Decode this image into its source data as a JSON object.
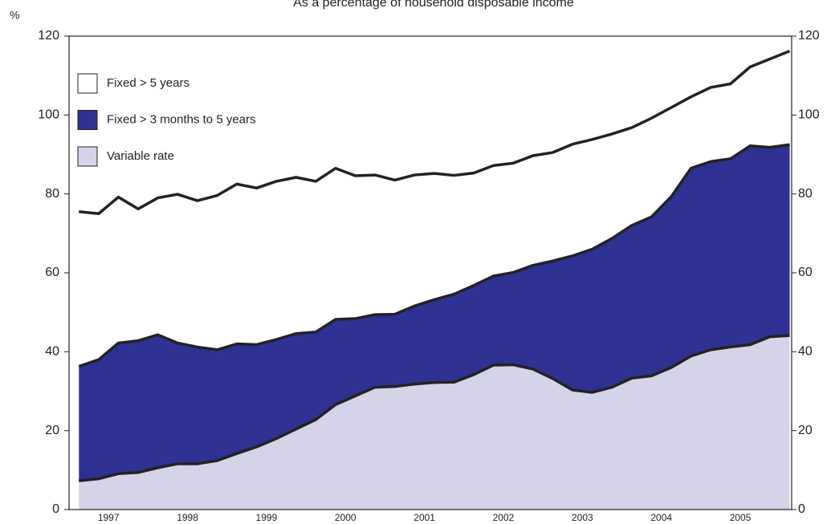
{
  "chart_data": {
    "type": "stacked-area",
    "title": "As a percentage of household disposable income",
    "y_label": "%",
    "x": [
      1997.125,
      1997.375,
      1997.625,
      1997.875,
      1998.125,
      1998.375,
      1998.625,
      1998.875,
      1999.125,
      1999.375,
      1999.625,
      1999.875,
      2000.125,
      2000.375,
      2000.625,
      2000.875,
      2001.125,
      2001.375,
      2001.625,
      2001.875,
      2002.125,
      2002.375,
      2002.625,
      2002.875,
      2003.125,
      2003.375,
      2003.625,
      2003.875,
      2004.125,
      2004.375,
      2004.625,
      2004.875,
      2005.125,
      2005.375,
      2005.625,
      2005.875,
      2006.125
    ],
    "xlim": [
      1997,
      2006.15
    ],
    "xticks": [
      {
        "value": 1997.5,
        "label": "1997"
      },
      {
        "value": 1998.5,
        "label": "1998"
      },
      {
        "value": 1999.5,
        "label": "1999"
      },
      {
        "value": 2000.5,
        "label": "2000"
      },
      {
        "value": 2001.5,
        "label": "2001"
      },
      {
        "value": 2002.5,
        "label": "2002"
      },
      {
        "value": 2003.5,
        "label": "2003"
      },
      {
        "value": 2004.5,
        "label": "2004"
      },
      {
        "value": 2005.5,
        "label": "2005"
      }
    ],
    "ylim": [
      0,
      120
    ],
    "yticks": [
      0,
      20,
      40,
      60,
      80,
      100,
      120
    ],
    "y2lim": [
      0,
      120
    ],
    "y2ticks": [
      0,
      20,
      40,
      60,
      80,
      100,
      120
    ],
    "legend": "upper left",
    "series": [
      {
        "name": "Variable rate",
        "color": "#d4d3e8",
        "values": [
          7.3,
          7.8,
          9.1,
          9.4,
          10.6,
          11.6,
          11.6,
          12.4,
          14.2,
          15.9,
          18,
          20.4,
          22.8,
          26.6,
          28.8,
          31,
          31.2,
          31.8,
          32.2,
          32.3,
          34.2,
          36.6,
          36.7,
          35.6,
          33.2,
          30.3,
          29.7,
          31,
          33.3,
          33.9,
          36,
          38.9,
          40.5,
          41.2,
          41.8,
          43.8,
          44.1
        ]
      },
      {
        "name": "Fixed > 3 months to 5 years",
        "color": "#2e3192",
        "values": [
          29.0,
          30.2,
          33.1,
          33.4,
          33.7,
          30.6,
          29.6,
          28.1,
          27.8,
          25.9,
          25.1,
          24.2,
          22.2,
          21.6,
          19.6,
          18.4,
          18.3,
          19.8,
          21.0,
          22.3,
          22.6,
          22.6,
          23.4,
          26.3,
          29.8,
          34.0,
          36.3,
          37.7,
          38.7,
          40.3,
          43.3,
          47.6,
          47.7,
          47.7,
          50.4,
          48.0,
          48.4
        ]
      },
      {
        "name": "Fixed > 5 years",
        "color": "#ffffff",
        "values": [
          39.2,
          37.0,
          37.0,
          33.4,
          34.7,
          37.7,
          37.1,
          39.1,
          40.5,
          39.7,
          40.1,
          39.6,
          38.2,
          38.3,
          36.2,
          35.4,
          34.0,
          33.2,
          32.0,
          30.1,
          28.5,
          28.0,
          27.7,
          27.8,
          27.5,
          28.3,
          27.8,
          26.5,
          24.8,
          25.0,
          22.6,
          18.1,
          18.8,
          19.0,
          20.0,
          22.4,
          23.7
        ]
      }
    ]
  }
}
